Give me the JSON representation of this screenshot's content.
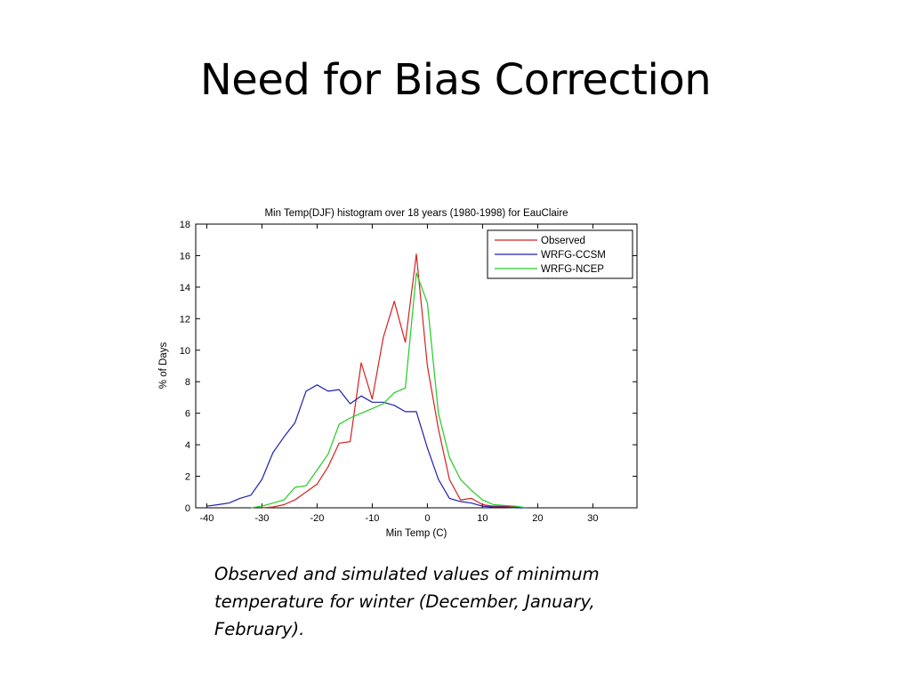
{
  "slide": {
    "title": "Need for Bias Correction",
    "caption": "Observed and simulated values of minimum temperature for winter (December, January, February)."
  },
  "chart_data": {
    "type": "line",
    "title": "Min Temp(DJF) histogram over 18 years (1980-1998) for EauClaire",
    "xlabel": "Min Temp (C)",
    "ylabel": "% of Days",
    "xlim": [
      -42,
      38
    ],
    "ylim": [
      0,
      18
    ],
    "xticks": [
      -40,
      -30,
      -20,
      -10,
      0,
      10,
      20,
      30
    ],
    "yticks": [
      0,
      2,
      4,
      6,
      8,
      10,
      12,
      14,
      16,
      18
    ],
    "grid": false,
    "legend_position": "top-right",
    "series": [
      {
        "name": "Observed",
        "color": "#d42020",
        "x": [
          -30,
          -28,
          -26,
          -24,
          -22,
          -20,
          -18,
          -16,
          -14,
          -12,
          -10,
          -8,
          -6,
          -4,
          -2,
          0,
          2,
          4,
          6,
          8,
          10,
          12,
          14,
          16,
          18
        ],
        "y": [
          0,
          0.05,
          0.2,
          0.5,
          1.0,
          1.5,
          2.6,
          4.1,
          4.2,
          9.2,
          6.9,
          10.8,
          13.1,
          10.5,
          16.1,
          9.0,
          5.0,
          1.8,
          0.5,
          0.6,
          0.2,
          0.1,
          0.1,
          0.05,
          0
        ]
      },
      {
        "name": "WRFG-CCSM",
        "color": "#2020b0",
        "x": [
          -40,
          -38,
          -36,
          -34,
          -32,
          -30,
          -28,
          -26,
          -24,
          -22,
          -20,
          -18,
          -16,
          -14,
          -12,
          -10,
          -8,
          -6,
          -4,
          -2,
          0,
          2,
          4,
          6,
          8,
          10,
          12,
          14,
          16,
          18
        ],
        "y": [
          0.1,
          0.2,
          0.3,
          0.6,
          0.8,
          1.8,
          3.5,
          4.5,
          5.4,
          7.4,
          7.8,
          7.4,
          7.5,
          6.6,
          7.1,
          6.7,
          6.7,
          6.5,
          6.1,
          6.1,
          3.8,
          1.8,
          0.6,
          0.4,
          0.3,
          0.1,
          0.05,
          0.05,
          0,
          0
        ]
      },
      {
        "name": "WRFG-NCEP",
        "color": "#22cc22",
        "x": [
          -32,
          -30,
          -28,
          -26,
          -24,
          -22,
          -20,
          -18,
          -16,
          -14,
          -12,
          -10,
          -8,
          -6,
          -4,
          -2,
          0,
          2,
          4,
          6,
          8,
          10,
          12,
          14,
          16,
          18
        ],
        "y": [
          0,
          0.1,
          0.3,
          0.5,
          1.3,
          1.4,
          2.4,
          3.4,
          5.3,
          5.7,
          6.0,
          6.3,
          6.6,
          7.3,
          7.6,
          14.9,
          13.0,
          6.0,
          3.2,
          1.8,
          1.1,
          0.5,
          0.2,
          0.15,
          0.1,
          0
        ]
      }
    ]
  }
}
